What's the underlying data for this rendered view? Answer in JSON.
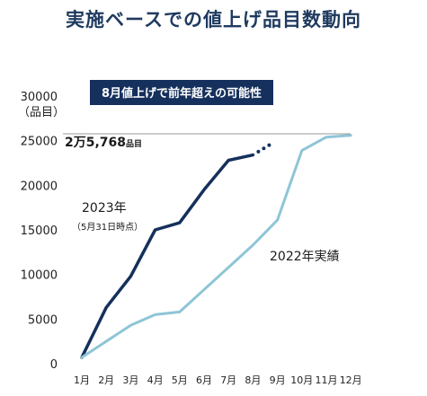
{
  "title": "実施ベースでの値上げ品目数動向",
  "chart_data": {
    "type": "line",
    "title": "実施ベースでの値上げ品目数動向",
    "ylabel": [
      "30000",
      "（品目）"
    ],
    "ylim": [
      0,
      30000
    ],
    "yticks": [
      0,
      5000,
      10000,
      15000,
      20000,
      25000,
      30000
    ],
    "ytick_labels": [
      "0",
      "5000",
      "10000",
      "15000",
      "20000",
      "25000",
      "30000"
    ],
    "categories": [
      "1月",
      "2月",
      "3月",
      "4月",
      "5月",
      "6月",
      "7月",
      "8月",
      "9月",
      "10月",
      "11月",
      "12月"
    ],
    "series": [
      {
        "name": "2023年",
        "sub_label": "（5月31日時点）",
        "color": "#15305c",
        "values": [
          700,
          6300,
          9800,
          15000,
          15800,
          19500,
          22800,
          23400,
          null,
          null,
          null,
          null
        ],
        "dotted_tail_to": 24500
      },
      {
        "name": "2022年実績",
        "color": "#8ec5d6",
        "values": [
          700,
          2500,
          4300,
          5500,
          5800,
          8300,
          10800,
          13300,
          16100,
          23900,
          25400,
          25600
        ]
      }
    ],
    "reference_line": {
      "value": 25768,
      "label_big": "2万5,768",
      "label_small": "品目"
    },
    "callout": "8月値上げで前年超えの可能性"
  }
}
